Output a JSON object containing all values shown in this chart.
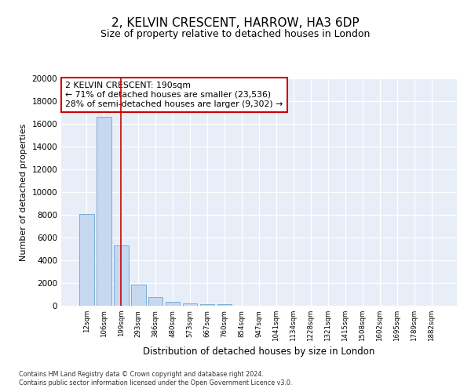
{
  "title": "2, KELVIN CRESCENT, HARROW, HA3 6DP",
  "subtitle": "Size of property relative to detached houses in London",
  "xlabel": "Distribution of detached houses by size in London",
  "ylabel": "Number of detached properties",
  "bar_values": [
    8050,
    16600,
    5300,
    1850,
    750,
    320,
    200,
    170,
    130,
    0,
    0,
    0,
    0,
    0,
    0,
    0,
    0,
    0,
    0,
    0,
    0
  ],
  "bar_labels": [
    "12sqm",
    "106sqm",
    "199sqm",
    "293sqm",
    "386sqm",
    "480sqm",
    "573sqm",
    "667sqm",
    "760sqm",
    "854sqm",
    "947sqm",
    "1041sqm",
    "1134sqm",
    "1228sqm",
    "1321sqm",
    "1415sqm",
    "1508sqm",
    "1602sqm",
    "1695sqm",
    "1789sqm",
    "1882sqm"
  ],
  "bar_color": "#c5d8f0",
  "bar_edgecolor": "#7badd4",
  "vline_x": 2.0,
  "vline_color": "#cc0000",
  "annotation_text": "2 KELVIN CRESCENT: 190sqm\n← 71% of detached houses are smaller (23,536)\n28% of semi-detached houses are larger (9,302) →",
  "annotation_box_color": "#ffffff",
  "annotation_box_edgecolor": "#cc0000",
  "ylim": [
    0,
    20000
  ],
  "yticks": [
    0,
    2000,
    4000,
    6000,
    8000,
    10000,
    12000,
    14000,
    16000,
    18000,
    20000
  ],
  "footer_line1": "Contains HM Land Registry data © Crown copyright and database right 2024.",
  "footer_line2": "Contains public sector information licensed under the Open Government Licence v3.0.",
  "plot_bg_color": "#e8eef8",
  "fig_bg_color": "#ffffff",
  "num_bars": 21
}
